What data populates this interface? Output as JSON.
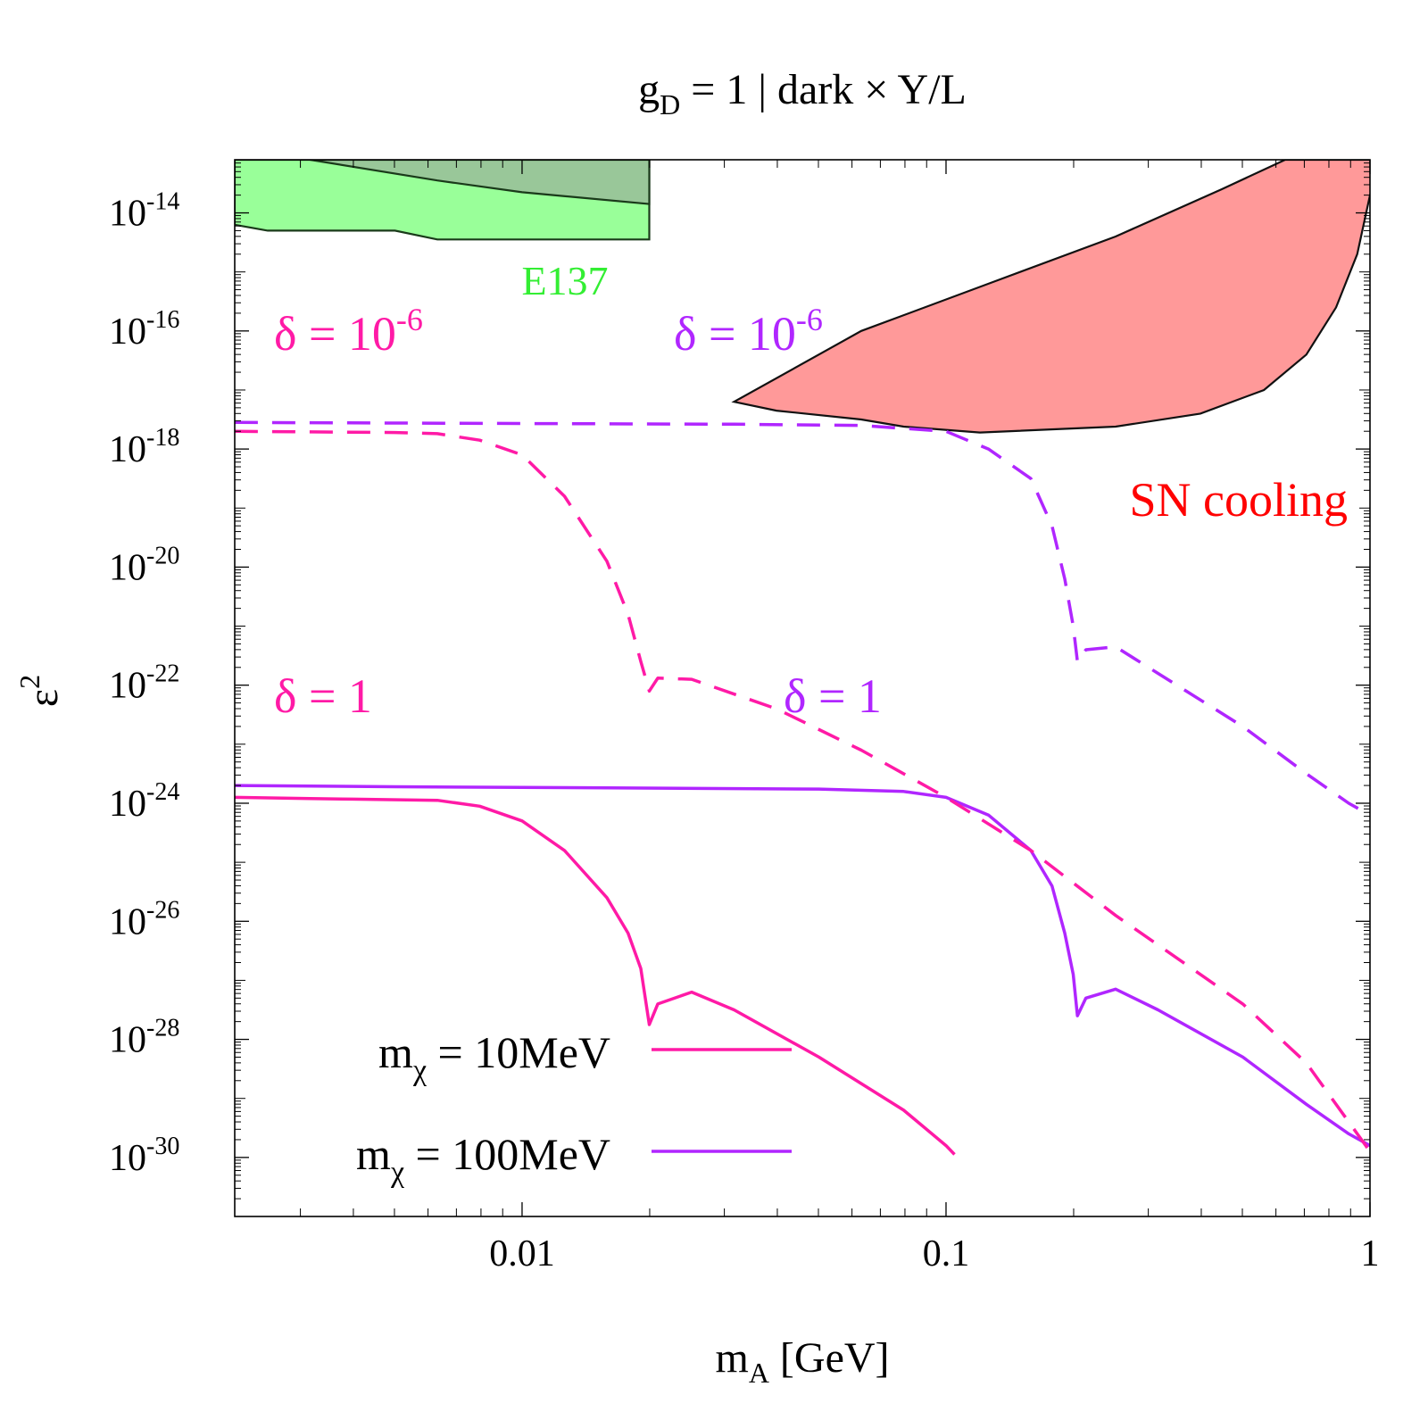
{
  "chart_data": {
    "type": "line",
    "title": {
      "main": "g",
      "sub": "D",
      "rest": " = 1 | dark × Y/L"
    },
    "xlabel": {
      "main": "m",
      "sub": "A",
      "rest": " [GeV]"
    },
    "ylabel": {
      "main": "ε",
      "sup": "2"
    },
    "x_scale": "log",
    "y_scale": "log",
    "xlim": [
      0.0021,
      1.0
    ],
    "ylim_log10": [
      -31,
      -13.1
    ],
    "x_ticks": [
      {
        "value": 0.01,
        "label": "0.01"
      },
      {
        "value": 0.1,
        "label": "0.1"
      },
      {
        "value": 1,
        "label": "1"
      }
    ],
    "y_ticks": [
      {
        "exp": -14,
        "base": "10",
        "sup": "-14"
      },
      {
        "exp": -16,
        "base": "10",
        "sup": "-16"
      },
      {
        "exp": -18,
        "base": "10",
        "sup": "-18"
      },
      {
        "exp": -20,
        "base": "10",
        "sup": "-20"
      },
      {
        "exp": -22,
        "base": "10",
        "sup": "-22"
      },
      {
        "exp": -24,
        "base": "10",
        "sup": "-24"
      },
      {
        "exp": -26,
        "base": "10",
        "sup": "-26"
      },
      {
        "exp": -28,
        "base": "10",
        "sup": "-28"
      },
      {
        "exp": -30,
        "base": "10",
        "sup": "-30"
      }
    ],
    "regions": [
      {
        "name": "E137",
        "label": "E137",
        "label_color": "#33ee33",
        "fill": "#99ff99",
        "stroke": "#1a3a1a",
        "points_log10": [
          [
            -2.678,
            -14.2
          ],
          [
            -2.6,
            -14.3
          ],
          [
            -2.3,
            -14.3
          ],
          [
            -2.2,
            -14.45
          ],
          [
            -1.7,
            -14.45
          ],
          [
            -1.7,
            -13.1
          ],
          [
            -2.678,
            -13.1
          ]
        ]
      },
      {
        "name": "E137 inner",
        "fill": "#99c799",
        "stroke": "#1a3a1a",
        "points_log10": [
          [
            -2.5,
            -13.1
          ],
          [
            -1.7,
            -13.1
          ],
          [
            -1.7,
            -13.85
          ],
          [
            -2.0,
            -13.65
          ],
          [
            -2.2,
            -13.45
          ],
          [
            -2.5,
            -13.1
          ]
        ]
      },
      {
        "name": "SN cooling",
        "label": "SN cooling",
        "label_color": "#ff0000",
        "fill": "#ff9999",
        "stroke": "#111111",
        "points_log10": [
          [
            -1.5,
            -17.2
          ],
          [
            -1.4,
            -17.35
          ],
          [
            -1.2,
            -17.5
          ],
          [
            -1.1,
            -17.62
          ],
          [
            -0.92,
            -17.72
          ],
          [
            -0.6,
            -17.62
          ],
          [
            -0.4,
            -17.4
          ],
          [
            -0.25,
            -17.0
          ],
          [
            -0.15,
            -16.4
          ],
          [
            -0.08,
            -15.6
          ],
          [
            -0.03,
            -14.7
          ],
          [
            0.0,
            -13.7
          ],
          [
            0.03,
            -13.1
          ],
          [
            -0.2,
            -13.1
          ],
          [
            -0.35,
            -13.6
          ],
          [
            -0.6,
            -14.4
          ],
          [
            -0.9,
            -15.2
          ],
          [
            -1.2,
            -16.0
          ],
          [
            -1.5,
            -17.2
          ]
        ]
      }
    ],
    "series": [
      {
        "name": "mχ = 10MeV, δ = 1",
        "color": "#ff1aa6",
        "style": "solid",
        "points_log10": [
          [
            -2.678,
            -23.9
          ],
          [
            -2.5,
            -23.92
          ],
          [
            -2.4,
            -23.93
          ],
          [
            -2.2,
            -23.95
          ],
          [
            -2.1,
            -24.05
          ],
          [
            -2.0,
            -24.3
          ],
          [
            -1.9,
            -24.8
          ],
          [
            -1.8,
            -25.6
          ],
          [
            -1.75,
            -26.2
          ],
          [
            -1.72,
            -26.8
          ],
          [
            -1.7,
            -27.75
          ],
          [
            -1.68,
            -27.4
          ],
          [
            -1.6,
            -27.2
          ],
          [
            -1.5,
            -27.5
          ],
          [
            -1.3,
            -28.3
          ],
          [
            -1.1,
            -29.2
          ],
          [
            -1.0,
            -29.8
          ],
          [
            -0.98,
            -29.95
          ]
        ]
      },
      {
        "name": "mχ = 100MeV, δ = 1",
        "color": "#b026ff",
        "style": "solid",
        "points_log10": [
          [
            -2.678,
            -23.7
          ],
          [
            -2.3,
            -23.72
          ],
          [
            -1.8,
            -23.74
          ],
          [
            -1.3,
            -23.76
          ],
          [
            -1.1,
            -23.8
          ],
          [
            -1.0,
            -23.9
          ],
          [
            -0.9,
            -24.2
          ],
          [
            -0.8,
            -24.8
          ],
          [
            -0.75,
            -25.4
          ],
          [
            -0.72,
            -26.2
          ],
          [
            -0.7,
            -26.9
          ],
          [
            -0.69,
            -27.6
          ],
          [
            -0.67,
            -27.3
          ],
          [
            -0.6,
            -27.15
          ],
          [
            -0.5,
            -27.5
          ],
          [
            -0.3,
            -28.3
          ],
          [
            -0.15,
            -29.1
          ],
          [
            -0.05,
            -29.6
          ],
          [
            0.0,
            -29.8
          ]
        ]
      },
      {
        "name": "mχ = 10MeV, δ = 10^-6",
        "color": "#ff1aa6",
        "style": "dashed",
        "points_log10": [
          [
            -2.678,
            -17.7
          ],
          [
            -2.3,
            -17.72
          ],
          [
            -2.2,
            -17.74
          ],
          [
            -2.1,
            -17.85
          ],
          [
            -2.0,
            -18.1
          ],
          [
            -1.9,
            -18.8
          ],
          [
            -1.8,
            -19.9
          ],
          [
            -1.75,
            -20.8
          ],
          [
            -1.72,
            -21.6
          ],
          [
            -1.7,
            -22.1
          ],
          [
            -1.68,
            -21.88
          ],
          [
            -1.6,
            -21.9
          ],
          [
            -1.4,
            -22.4
          ],
          [
            -1.2,
            -23.1
          ],
          [
            -1.0,
            -23.9
          ],
          [
            -0.8,
            -24.8
          ],
          [
            -0.6,
            -25.9
          ],
          [
            -0.5,
            -26.4
          ],
          [
            -0.3,
            -27.4
          ],
          [
            -0.15,
            -28.4
          ],
          [
            0.0,
            -29.9
          ]
        ]
      },
      {
        "name": "mχ = 100MeV, δ = 10^-6",
        "color": "#b026ff",
        "style": "dashed",
        "points_log10": [
          [
            -2.678,
            -17.55
          ],
          [
            -2.3,
            -17.56
          ],
          [
            -1.9,
            -17.57
          ],
          [
            -1.5,
            -17.58
          ],
          [
            -1.2,
            -17.6
          ],
          [
            -1.0,
            -17.7
          ],
          [
            -0.9,
            -18.0
          ],
          [
            -0.8,
            -18.5
          ],
          [
            -0.75,
            -19.3
          ],
          [
            -0.72,
            -20.2
          ],
          [
            -0.7,
            -21.0
          ],
          [
            -0.69,
            -21.6
          ],
          [
            -0.67,
            -21.4
          ],
          [
            -0.6,
            -21.35
          ],
          [
            -0.5,
            -21.8
          ],
          [
            -0.3,
            -22.7
          ],
          [
            -0.15,
            -23.5
          ],
          [
            -0.05,
            -24.0
          ],
          [
            0.0,
            -24.2
          ]
        ]
      }
    ],
    "annotations": [
      {
        "text": "δ = 10",
        "sup": "-6",
        "color": "#ff1aa6",
        "name": "delta-1e-6-label-10MeV"
      },
      {
        "text": "δ = 10",
        "sup": "-6",
        "color": "#b026ff",
        "name": "delta-1e-6-label-100MeV"
      },
      {
        "text": "δ = 1",
        "sup": "",
        "color": "#ff1aa6",
        "name": "delta-1-label-10MeV"
      },
      {
        "text": "δ = 1",
        "sup": "",
        "color": "#b026ff",
        "name": "delta-1-label-100MeV"
      }
    ],
    "legend": {
      "placement": "bottom-left",
      "entries": [
        {
          "main": "m",
          "sub": "χ",
          "rest": " = 10MeV",
          "color": "#ff1aa6"
        },
        {
          "main": "m",
          "sub": "χ",
          "rest": " = 100MeV",
          "color": "#b026ff"
        }
      ]
    }
  }
}
